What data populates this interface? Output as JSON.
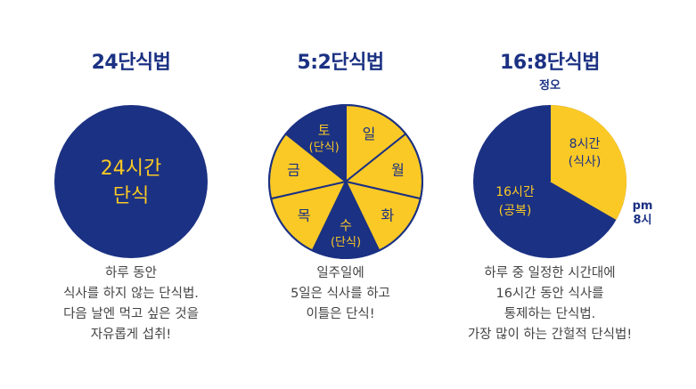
{
  "colors": {
    "navy": "#1b3183",
    "yellow": "#fbc925",
    "text": "#444444"
  },
  "panels": [
    {
      "title": "24단식법",
      "center_lines": [
        "24시간",
        "단식"
      ],
      "desc_lines": [
        "하루 동안",
        "식사를 하지 않는 단식법.",
        "다음 날엔 먹고 싶은 것을",
        "자유롭게 섭취!"
      ]
    },
    {
      "title": "5:2단식법",
      "slices": [
        {
          "day": "일",
          "fast": ""
        },
        {
          "day": "월",
          "fast": ""
        },
        {
          "day": "화",
          "fast": ""
        },
        {
          "day": "수",
          "fast": "(단식)"
        },
        {
          "day": "목",
          "fast": ""
        },
        {
          "day": "금",
          "fast": ""
        },
        {
          "day": "토",
          "fast": "(단식)"
        }
      ],
      "desc_lines": [
        "일주일에",
        "5일은 식사를 하고",
        "이틀은 단식!"
      ]
    },
    {
      "title": "16:8단식법",
      "top_label": "정오",
      "side_label": [
        "pm",
        "8시"
      ],
      "eat_lines": [
        "8시간",
        "(식사)"
      ],
      "fast_lines": [
        "16시간",
        "(공복)"
      ],
      "desc_lines": [
        "하루 중 일정한 시간대에",
        "16시간 동안 식사를",
        "통제하는 단식법.",
        "가장 많이 하는 간헐적 단식법!"
      ]
    }
  ]
}
